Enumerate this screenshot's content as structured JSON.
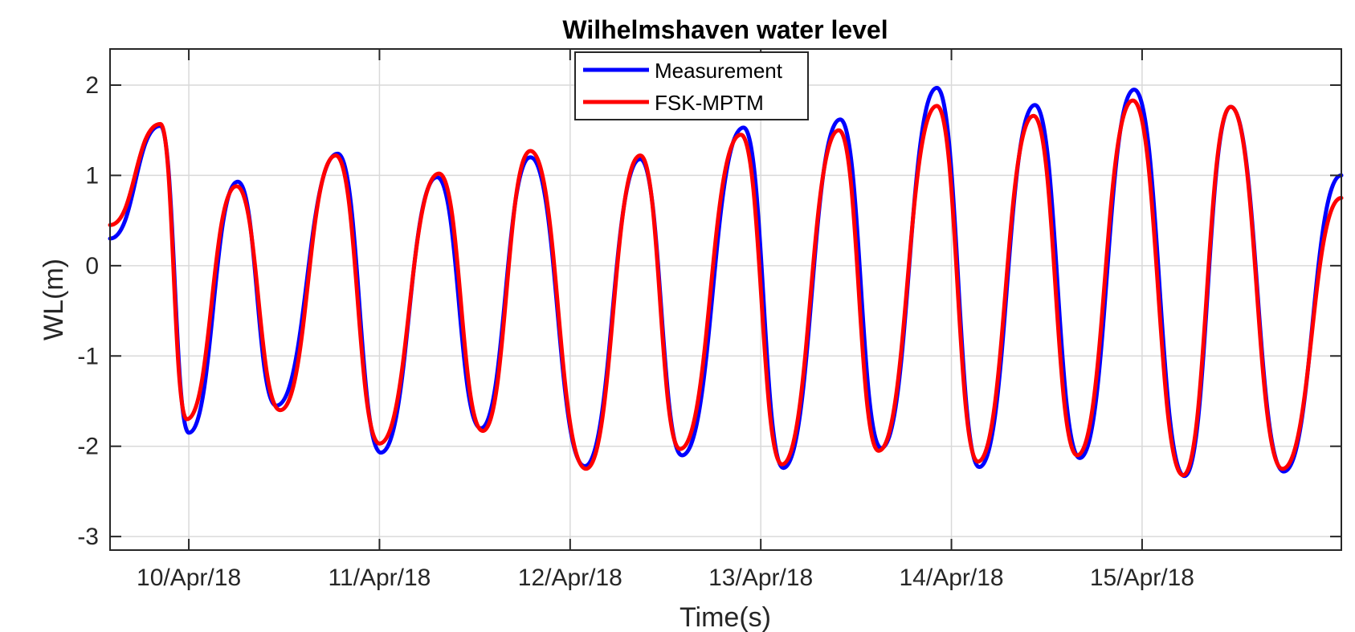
{
  "chart_data": {
    "type": "line",
    "title": "Wilhelmshaven water level",
    "xlabel": "Time(s)",
    "ylabel": "WL(m)",
    "x_axis": {
      "type": "date",
      "start": "2018-04-09T14:05",
      "end": "2018-04-16T01:05",
      "ticks": [
        "2018-04-10",
        "2018-04-11",
        "2018-04-12",
        "2018-04-13",
        "2018-04-14",
        "2018-04-15"
      ],
      "tick_labels": [
        "10/Apr/18",
        "11/Apr/18",
        "12/Apr/18",
        "13/Apr/18",
        "14/Apr/18",
        "15/Apr/18"
      ]
    },
    "ylim": [
      -3.15,
      2.4
    ],
    "yticks": [
      -3,
      -2,
      -1,
      0,
      1,
      2
    ],
    "ytick_labels": [
      "-3",
      "-2",
      "-1",
      "0",
      "1",
      "2"
    ],
    "grid": true,
    "legend_position": "top-center",
    "series": [
      {
        "name": "Measurement",
        "color": "#0000ff",
        "x": [
          "2018-04-09T14:05",
          "2018-04-09T20:25",
          "2018-04-10T00:00",
          "2018-04-10T06:10",
          "2018-04-10T11:00",
          "2018-04-10T18:45",
          "2018-04-11T00:10",
          "2018-04-11T07:15",
          "2018-04-11T12:45",
          "2018-04-11T19:00",
          "2018-04-12T01:50",
          "2018-04-12T08:50",
          "2018-04-12T14:05",
          "2018-04-12T21:50",
          "2018-04-13T02:50",
          "2018-04-13T10:00",
          "2018-04-13T15:10",
          "2018-04-13T22:10",
          "2018-04-14T03:30",
          "2018-04-14T10:30",
          "2018-04-14T16:10",
          "2018-04-14T23:00",
          "2018-04-15T05:20",
          "2018-04-15T11:10",
          "2018-04-15T17:50",
          "2018-04-16T01:05"
        ],
        "y": [
          0.3,
          1.55,
          -1.85,
          0.93,
          -1.55,
          1.24,
          -2.07,
          0.98,
          -1.8,
          1.2,
          -2.22,
          1.18,
          -2.1,
          1.53,
          -2.24,
          1.62,
          -2.02,
          1.97,
          -2.23,
          1.78,
          -2.13,
          1.95,
          -2.33,
          1.76,
          -2.28,
          1.0
        ]
      },
      {
        "name": "FSK-MPTM",
        "color": "#ff0000",
        "x": [
          "2018-04-09T14:05",
          "2018-04-09T20:25",
          "2018-04-09T23:45",
          "2018-04-10T06:00",
          "2018-04-10T11:30",
          "2018-04-10T18:30",
          "2018-04-11T00:00",
          "2018-04-11T07:30",
          "2018-04-11T13:00",
          "2018-04-11T19:00",
          "2018-04-12T02:00",
          "2018-04-12T08:50",
          "2018-04-12T13:50",
          "2018-04-12T21:30",
          "2018-04-13T02:40",
          "2018-04-13T09:50",
          "2018-04-13T14:50",
          "2018-04-13T22:10",
          "2018-04-14T03:20",
          "2018-04-14T10:20",
          "2018-04-14T15:50",
          "2018-04-14T22:50",
          "2018-04-15T05:10",
          "2018-04-15T11:10",
          "2018-04-15T17:40",
          "2018-04-16T01:05"
        ],
        "y": [
          0.45,
          1.57,
          -1.7,
          0.88,
          -1.6,
          1.22,
          -1.97,
          1.02,
          -1.83,
          1.27,
          -2.25,
          1.22,
          -2.03,
          1.45,
          -2.2,
          1.5,
          -2.05,
          1.77,
          -2.17,
          1.66,
          -2.1,
          1.83,
          -2.32,
          1.76,
          -2.25,
          0.75
        ]
      }
    ]
  }
}
